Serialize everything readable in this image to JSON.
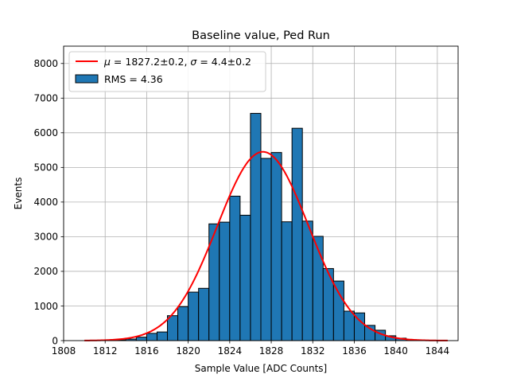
{
  "chart_data": {
    "type": "bar",
    "title": "Baseline value, Ped Run",
    "xlabel": "Sample Value [ADC Counts]",
    "ylabel": "Events",
    "xlim": [
      1808,
      1846
    ],
    "ylim": [
      0,
      8500
    ],
    "grid": true,
    "legend_placement": "top-left",
    "x_ticks": [
      1808,
      1812,
      1816,
      1820,
      1824,
      1828,
      1832,
      1836,
      1840,
      1844
    ],
    "y_ticks": [
      0,
      1000,
      2000,
      3000,
      4000,
      5000,
      6000,
      7000,
      8000
    ],
    "histogram": {
      "name": "RMS = 4.36",
      "color": "#1f77b4",
      "edge_color": "#000000",
      "bins": [
        {
          "x": 1812,
          "count": 8
        },
        {
          "x": 1813,
          "count": 20
        },
        {
          "x": 1814,
          "count": 45
        },
        {
          "x": 1815,
          "count": 100
        },
        {
          "x": 1816,
          "count": 210
        },
        {
          "x": 1817,
          "count": 250
        },
        {
          "x": 1818,
          "count": 720
        },
        {
          "x": 1819,
          "count": 980
        },
        {
          "x": 1820,
          "count": 1400
        },
        {
          "x": 1821,
          "count": 1510
        },
        {
          "x": 1822,
          "count": 3370
        },
        {
          "x": 1823,
          "count": 3420
        },
        {
          "x": 1824,
          "count": 4170
        },
        {
          "x": 1825,
          "count": 3620
        },
        {
          "x": 1826,
          "count": 6560
        },
        {
          "x": 1827,
          "count": 5260
        },
        {
          "x": 1828,
          "count": 5430
        },
        {
          "x": 1829,
          "count": 3430
        },
        {
          "x": 1830,
          "count": 6130
        },
        {
          "x": 1831,
          "count": 3450
        },
        {
          "x": 1832,
          "count": 3010
        },
        {
          "x": 1833,
          "count": 2080
        },
        {
          "x": 1834,
          "count": 1720
        },
        {
          "x": 1835,
          "count": 850
        },
        {
          "x": 1836,
          "count": 800
        },
        {
          "x": 1837,
          "count": 440
        },
        {
          "x": 1838,
          "count": 300
        },
        {
          "x": 1839,
          "count": 140
        },
        {
          "x": 1840,
          "count": 70
        },
        {
          "x": 1841,
          "count": 25
        },
        {
          "x": 1842,
          "count": 10
        },
        {
          "x": 1843,
          "count": 4
        }
      ]
    },
    "fit": {
      "type": "gaussian",
      "name_parts": {
        "mu_symbol": "μ",
        "mu_text": " = 1827.2±0.2, ",
        "sigma_symbol": "σ",
        "sigma_text": " = 4.4±0.2"
      },
      "color": "#ff0000",
      "amplitude": 5450,
      "mean": 1827.2,
      "sigma": 4.4,
      "x_range": [
        1810,
        1845
      ]
    }
  }
}
